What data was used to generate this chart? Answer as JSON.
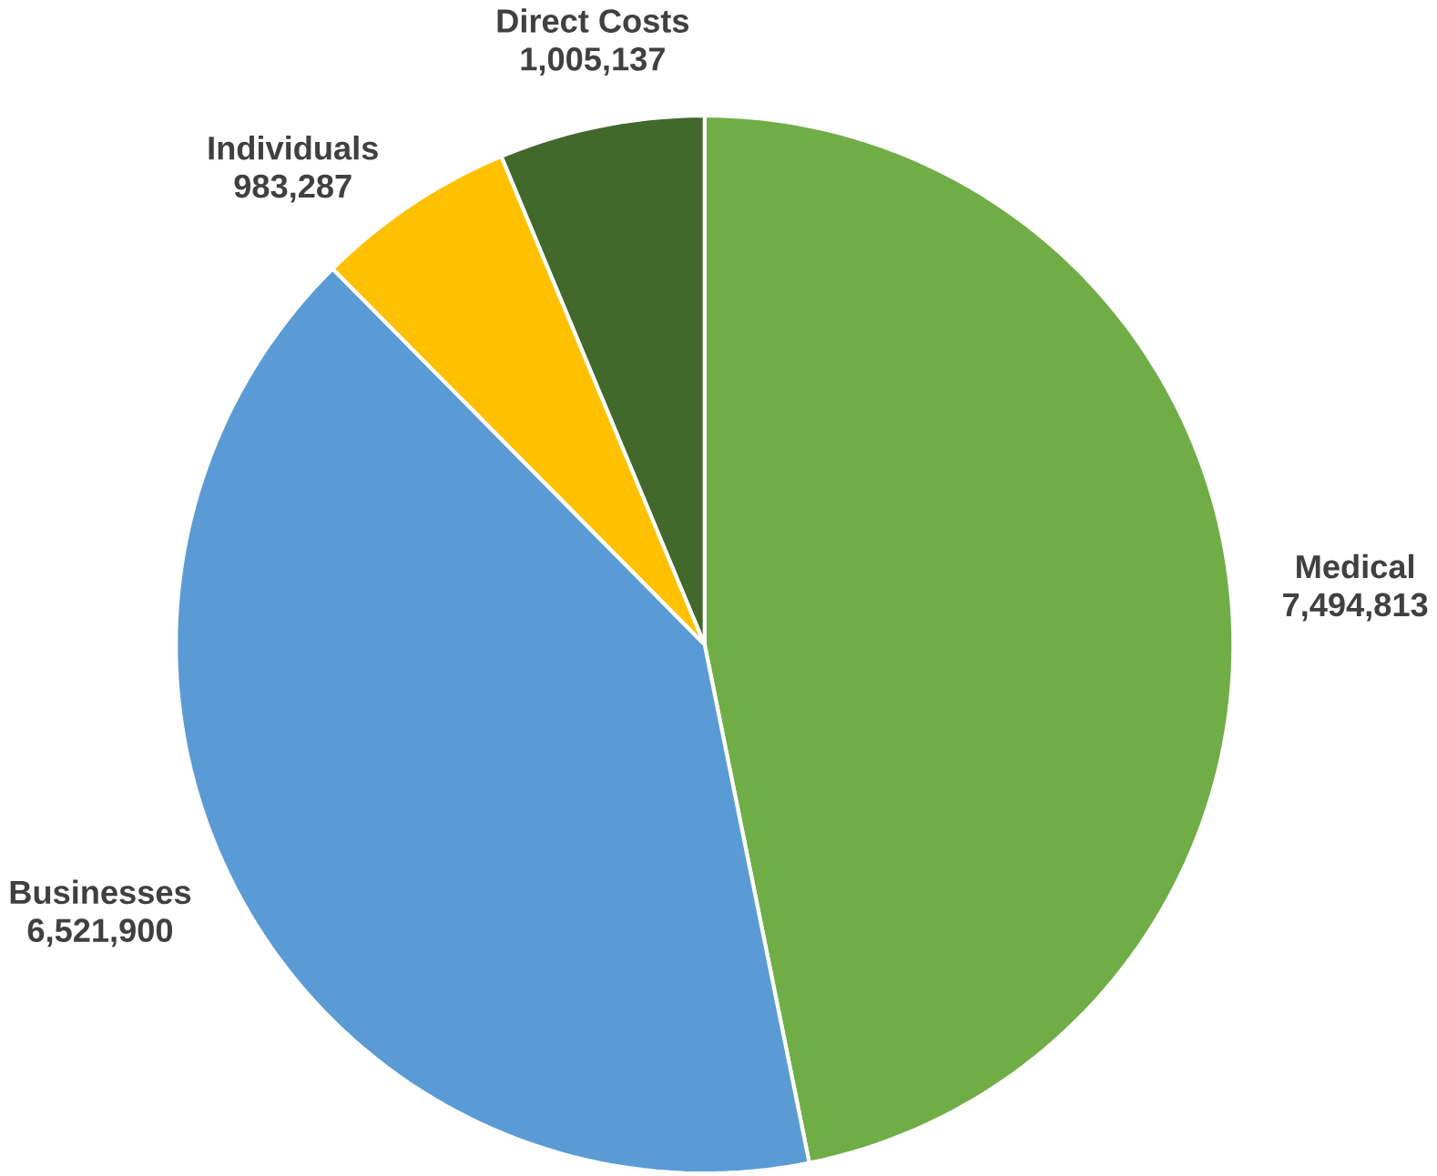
{
  "chart_data": {
    "type": "pie",
    "categories": [
      "Medical",
      "Businesses",
      "Individuals",
      "Direct Costs"
    ],
    "values": [
      7494813,
      6521900,
      983287,
      1005137
    ],
    "colors": [
      "#70ad47",
      "#5b9bd5",
      "#ffc000",
      "#43682b"
    ],
    "value_labels": [
      "7,494,813",
      "6,521,900",
      "983,287",
      "1,005,137"
    ]
  }
}
